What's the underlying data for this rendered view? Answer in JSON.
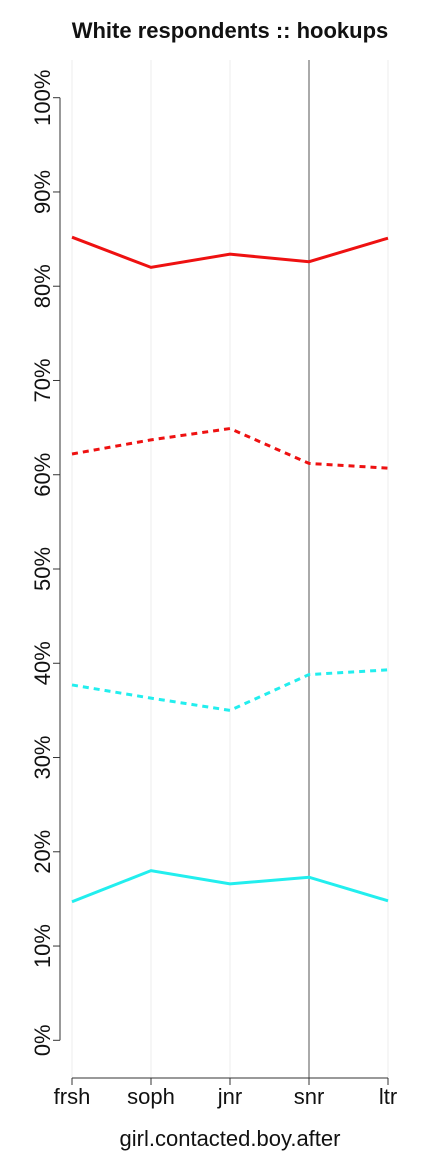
{
  "chart_data": {
    "type": "line",
    "title": "White respondents :: hookups",
    "x_label": "girl.contacted.boy.after",
    "categories": [
      "frsh",
      "soph",
      "jnr",
      "snr",
      "ltr"
    ],
    "series": [
      {
        "color": "#ee1111",
        "dash": false,
        "values": [
          85.2,
          82.0,
          83.4,
          82.6,
          85.1
        ]
      },
      {
        "color": "#ee1111",
        "dash": true,
        "values": [
          62.2,
          63.7,
          64.9,
          61.2,
          60.7
        ]
      },
      {
        "color": "#22eeee",
        "dash": true,
        "values": [
          37.7,
          36.3,
          35.0,
          38.8,
          39.3
        ]
      },
      {
        "color": "#22eeee",
        "dash": false,
        "values": [
          14.7,
          18.0,
          16.6,
          17.3,
          14.8
        ]
      }
    ],
    "ylim": [
      -4,
      104
    ],
    "yticks": [
      {
        "value": 0,
        "label": "0%"
      },
      {
        "value": 10,
        "label": "10%"
      },
      {
        "value": 20,
        "label": "20%"
      },
      {
        "value": 30,
        "label": "30%"
      },
      {
        "value": 40,
        "label": "40%"
      },
      {
        "value": 50,
        "label": "50%"
      },
      {
        "value": 60,
        "label": "60%"
      },
      {
        "value": 70,
        "label": "70%"
      },
      {
        "value": 80,
        "label": "80%"
      },
      {
        "value": 90,
        "label": "90%"
      },
      {
        "value": 100,
        "label": "100%"
      }
    ],
    "grid": true,
    "vline_index": 3
  }
}
